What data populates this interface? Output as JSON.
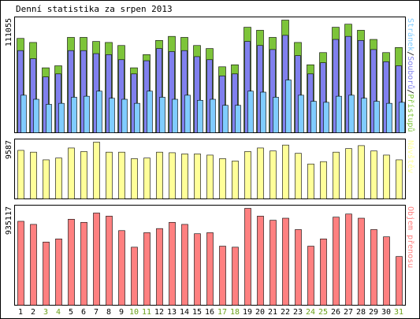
{
  "title": "Denní statistika za srpen 2013",
  "colors": {
    "hits": "#7dc43a",
    "files": "#8080ee",
    "pages": "#80ccff",
    "visits": "#ffff99",
    "kbytes": "#ff8080",
    "weekday_label": "#000000",
    "weekend_label": "#6aa01a",
    "bar_outline": "#000000"
  },
  "chart_data": [
    {
      "type": "bar",
      "panel": "top",
      "ymax_label": "111055",
      "right_label_parts": [
        {
          "text": "Stránek",
          "color": "#80ccff"
        },
        {
          "text": "/",
          "color": "#000000"
        },
        {
          "text": "Souborů",
          "color": "#8080ee"
        },
        {
          "text": "/",
          "color": "#000000"
        },
        {
          "text": "Přístupů",
          "color": "#7dc43a"
        }
      ],
      "categories": [
        "1",
        "2",
        "3",
        "4",
        "5",
        "6",
        "7",
        "8",
        "9",
        "10",
        "11",
        "12",
        "13",
        "14",
        "15",
        "16",
        "17",
        "18",
        "19",
        "20",
        "21",
        "22",
        "23",
        "24",
        "25",
        "26",
        "27",
        "28",
        "29",
        "30",
        "31"
      ],
      "ylim": [
        0,
        111055
      ],
      "series": [
        {
          "name": "Přístupů",
          "values": [
            93000,
            89000,
            64000,
            66000,
            94000,
            94000,
            90000,
            89000,
            86000,
            64000,
            77000,
            91000,
            95000,
            94000,
            86000,
            83000,
            65000,
            67000,
            104000,
            101000,
            94000,
            111055,
            89000,
            67000,
            79000,
            104000,
            107000,
            101000,
            92000,
            79000,
            84000
          ]
        },
        {
          "name": "Souborů",
          "values": [
            81000,
            73000,
            55000,
            58000,
            81000,
            81000,
            78000,
            77000,
            72000,
            58000,
            71000,
            83000,
            80000,
            81000,
            75000,
            72000,
            56000,
            58000,
            90000,
            86000,
            82000,
            96000,
            76000,
            58000,
            69000,
            92000,
            95000,
            91000,
            82000,
            70000,
            66000
          ]
        },
        {
          "name": "Stránek",
          "values": [
            37000,
            33000,
            28000,
            29000,
            35000,
            36000,
            41000,
            34000,
            33000,
            29000,
            41000,
            35000,
            33000,
            37000,
            32000,
            33000,
            27000,
            27000,
            41000,
            40000,
            35000,
            52000,
            37000,
            31000,
            30000,
            36000,
            37000,
            34000,
            31000,
            29000,
            30000
          ]
        }
      ]
    },
    {
      "type": "bar",
      "panel": "middle",
      "ymax_label": "9587",
      "right_label_parts": [
        {
          "text": "Návštěv",
          "color": "#ffff99"
        }
      ],
      "categories": [
        "1",
        "2",
        "3",
        "4",
        "5",
        "6",
        "7",
        "8",
        "9",
        "10",
        "11",
        "12",
        "13",
        "14",
        "15",
        "16",
        "17",
        "18",
        "19",
        "20",
        "21",
        "22",
        "23",
        "24",
        "25",
        "26",
        "27",
        "28",
        "29",
        "30",
        "31"
      ],
      "ylim": [
        0,
        9587
      ],
      "series": [
        {
          "name": "Návštěv",
          "values": [
            8200,
            7900,
            6600,
            6900,
            8600,
            8000,
            9587,
            7900,
            7900,
            6800,
            6900,
            7900,
            7800,
            7600,
            7600,
            7400,
            6800,
            6400,
            8000,
            8600,
            8100,
            9100,
            7700,
            5900,
            6300,
            7900,
            8500,
            9000,
            8100,
            7400,
            6600
          ]
        }
      ]
    },
    {
      "type": "bar",
      "panel": "bottom",
      "ymax_label": "935117",
      "right_label_parts": [
        {
          "text": "Objem přenosu",
          "color": "#ff8080"
        }
      ],
      "categories": [
        "1",
        "2",
        "3",
        "4",
        "5",
        "6",
        "7",
        "8",
        "9",
        "10",
        "11",
        "12",
        "13",
        "14",
        "15",
        "16",
        "17",
        "18",
        "19",
        "20",
        "21",
        "22",
        "23",
        "24",
        "25",
        "26",
        "27",
        "28",
        "29",
        "30",
        "31"
      ],
      "ylim": [
        0,
        935117
      ],
      "series": [
        {
          "name": "Objem přenosu",
          "values": [
            810000,
            780000,
            610000,
            640000,
            830000,
            800000,
            890000,
            860000,
            720000,
            560000,
            700000,
            740000,
            800000,
            780000,
            690000,
            700000,
            570000,
            560000,
            935117,
            860000,
            820000,
            840000,
            730000,
            570000,
            640000,
            850000,
            880000,
            840000,
            730000,
            660000,
            470000
          ]
        }
      ]
    }
  ],
  "x_labels": [
    "1",
    "2",
    "3",
    "4",
    "5",
    "6",
    "7",
    "8",
    "9",
    "10",
    "11",
    "12",
    "13",
    "14",
    "15",
    "16",
    "17",
    "18",
    "19",
    "20",
    "21",
    "22",
    "23",
    "24",
    "25",
    "26",
    "27",
    "28",
    "29",
    "30",
    "31"
  ],
  "weekend_days": [
    "3",
    "4",
    "10",
    "11",
    "17",
    "18",
    "24",
    "25",
    "31"
  ]
}
